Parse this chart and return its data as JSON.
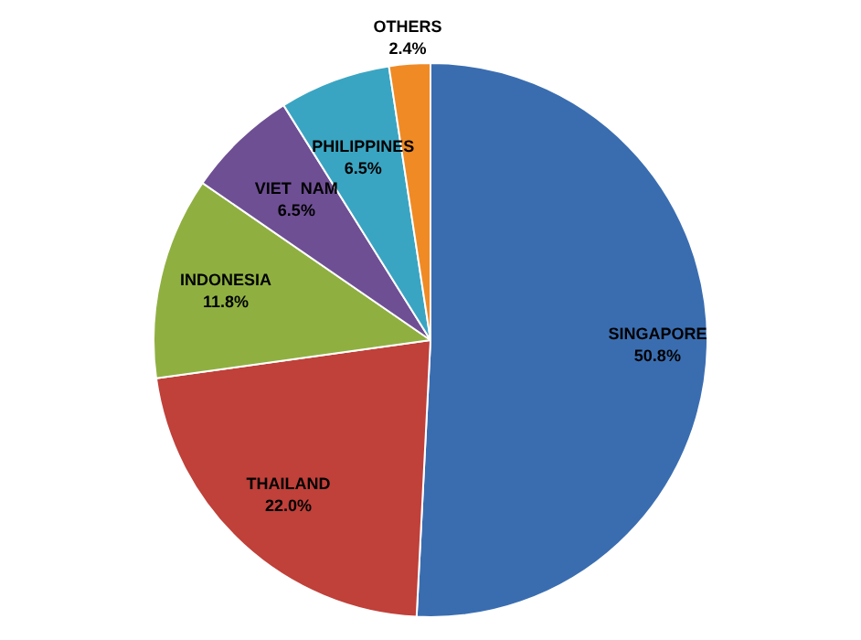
{
  "chart_data": {
    "type": "pie",
    "categories": [
      "SINGAPORE",
      "THAILAND",
      "INDONESIA",
      "VIET  NAM",
      "PHILIPPINES",
      "OTHERS"
    ],
    "values": [
      50.8,
      22.0,
      11.8,
      6.5,
      6.5,
      2.4
    ],
    "colors": [
      "#3a6db0",
      "#c0403a",
      "#8fb041",
      "#6e4f94",
      "#3aa5c2",
      "#f08a25"
    ],
    "value_labels": [
      "50.8%",
      "22.0%",
      "11.8%",
      "6.5%",
      "6.5%",
      "2.4%"
    ],
    "legend": false
  }
}
